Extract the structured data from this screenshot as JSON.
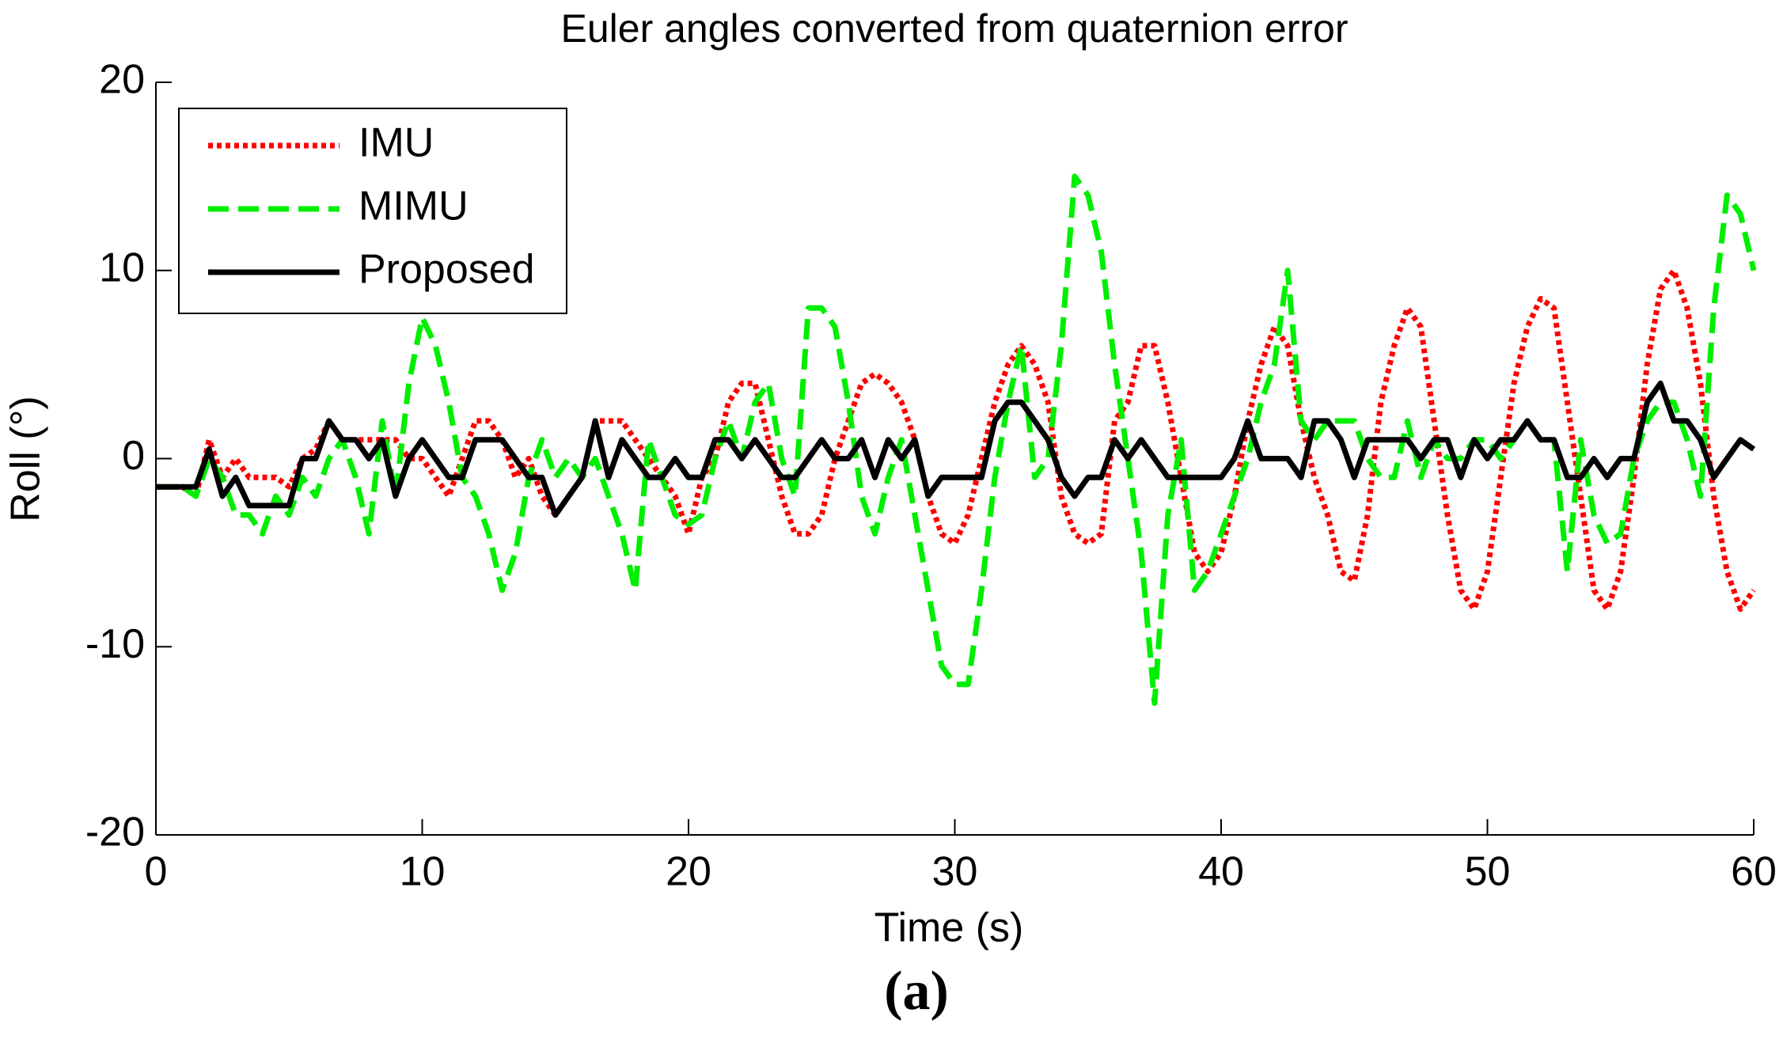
{
  "chart_data": {
    "type": "line",
    "title": "Euler angles converted from quaternion error",
    "xlabel": "Time (s)",
    "ylabel": "Roll (°)",
    "caption": "(a)",
    "xlim": [
      0,
      60
    ],
    "xticks": [
      0,
      10,
      20,
      30,
      40,
      50,
      60
    ],
    "ylim": [
      -20,
      20
    ],
    "yticks": [
      -20,
      -10,
      0,
      10,
      20
    ],
    "legend": "upper left",
    "x": [
      0,
      0.5,
      1,
      1.5,
      2,
      2.5,
      3,
      3.5,
      4,
      4.5,
      5,
      5.5,
      6,
      6.5,
      7,
      7.5,
      8,
      8.5,
      9,
      9.5,
      10,
      10.5,
      11,
      11.5,
      12,
      12.5,
      13,
      13.5,
      14,
      14.5,
      15,
      15.5,
      16,
      16.5,
      17,
      17.5,
      18,
      18.5,
      19,
      19.5,
      20,
      20.5,
      21,
      21.5,
      22,
      22.5,
      23,
      23.5,
      24,
      24.5,
      25,
      25.5,
      26,
      26.5,
      27,
      27.5,
      28,
      28.5,
      29,
      29.5,
      30,
      30.5,
      31,
      31.5,
      32,
      32.5,
      33,
      33.5,
      34,
      34.5,
      35,
      35.5,
      36,
      36.5,
      37,
      37.5,
      38,
      38.5,
      39,
      39.5,
      40,
      40.5,
      41,
      41.5,
      42,
      42.5,
      43,
      43.5,
      44,
      44.5,
      45,
      45.5,
      46,
      46.5,
      47,
      47.5,
      48,
      48.5,
      49,
      49.5,
      50,
      50.5,
      51,
      51.5,
      52,
      52.5,
      53,
      53.5,
      54,
      54.5,
      55,
      55.5,
      56,
      56.5,
      57,
      57.5,
      58,
      58.5,
      59,
      59.5,
      60
    ],
    "series": [
      {
        "name": "IMU",
        "color": "#ff0000",
        "style": "dotted",
        "values": [
          -1.5,
          -1.5,
          -1.5,
          -2,
          1,
          -1,
          0,
          -1,
          -1,
          -1,
          -1.5,
          0,
          0.5,
          2,
          1,
          1,
          1,
          1,
          1,
          0,
          0,
          -1,
          -2,
          0,
          2,
          2,
          1,
          -1,
          0,
          -2,
          -3,
          -2,
          -1,
          2,
          2,
          2,
          1,
          0,
          -1,
          -2,
          -4,
          -1,
          0,
          3,
          4,
          4,
          1,
          -2,
          -4,
          -4,
          -3,
          0,
          2,
          4,
          4.5,
          4,
          3,
          1,
          -2,
          -4,
          -4.5,
          -3,
          0,
          3,
          5,
          6,
          5,
          3,
          -2,
          -4,
          -4.5,
          -4,
          2,
          3,
          6,
          6,
          3,
          -1,
          -5,
          -6,
          -5,
          -2,
          2,
          5,
          7,
          6,
          2,
          -1,
          -3,
          -6,
          -6.5,
          -3,
          3,
          6,
          8,
          7,
          2,
          -3,
          -7,
          -8,
          -6,
          -1,
          4,
          7,
          8.5,
          8,
          3,
          -2,
          -7,
          -8,
          -6,
          -1,
          5,
          9,
          10,
          8,
          4,
          -2,
          -6,
          -8,
          -7
        ]
      },
      {
        "name": "MIMU",
        "color": "#00ee00",
        "style": "dashed",
        "values": [
          -1.5,
          -1.5,
          -1.5,
          -2,
          0,
          -1,
          -3,
          -3,
          -4,
          -2,
          -3,
          -1,
          -2,
          0,
          1,
          -1,
          -4,
          2,
          -2,
          4,
          7.5,
          6,
          3,
          -1,
          -2,
          -4,
          -7,
          -5,
          -1,
          1,
          -1,
          0,
          -1,
          0,
          -2,
          -4,
          -7,
          1,
          -1,
          -3,
          -3.5,
          -3,
          0,
          2,
          0,
          3,
          4,
          0,
          -2,
          8,
          8,
          7,
          3,
          -2,
          -4,
          -1,
          1,
          -3,
          -7,
          -11,
          -12,
          -12,
          -7,
          -1,
          3,
          6,
          -1,
          0,
          6,
          15,
          14,
          11,
          5,
          0,
          -5,
          -13,
          -3,
          1,
          -7,
          -6,
          -4,
          -2,
          0,
          3,
          5,
          10,
          2,
          1,
          2,
          2,
          2,
          0,
          -1,
          -1,
          2,
          -1,
          1,
          0,
          0,
          1,
          1,
          0,
          1,
          2,
          1,
          1,
          -6,
          1,
          -3,
          -4.5,
          -4,
          0,
          2,
          3,
          3,
          1,
          -2,
          8,
          14,
          13,
          10
        ]
      },
      {
        "name": "Proposed",
        "color": "#000000",
        "style": "solid",
        "values": [
          -1.5,
          -1.5,
          -1.5,
          -1.5,
          0.5,
          -2,
          -1,
          -2.5,
          -2.5,
          -2.5,
          -2.5,
          0,
          0,
          2,
          1,
          1,
          0,
          1,
          -2,
          0,
          1,
          0,
          -1,
          -1,
          1,
          1,
          1,
          0,
          -1,
          -1,
          -3,
          -2,
          -1,
          2,
          -1,
          1,
          0,
          -1,
          -1,
          0,
          -1,
          -1,
          1,
          1,
          0,
          1,
          0,
          -1,
          -1,
          0,
          1,
          0,
          0,
          1,
          -1,
          1,
          0,
          1,
          -2,
          -1,
          -1,
          -1,
          -1,
          2,
          3,
          3,
          2,
          1,
          -1,
          -2,
          -1,
          -1,
          1,
          0,
          1,
          0,
          -1,
          -1,
          -1,
          -1,
          -1,
          0,
          2,
          0,
          0,
          0,
          -1,
          2,
          2,
          1,
          -1,
          1,
          1,
          1,
          1,
          0,
          1,
          1,
          -1,
          1,
          0,
          1,
          1,
          2,
          1,
          1,
          -1,
          -1,
          0,
          -1,
          0,
          0,
          3,
          4,
          2,
          2,
          1,
          -1,
          0,
          1,
          0.5
        ]
      }
    ]
  }
}
